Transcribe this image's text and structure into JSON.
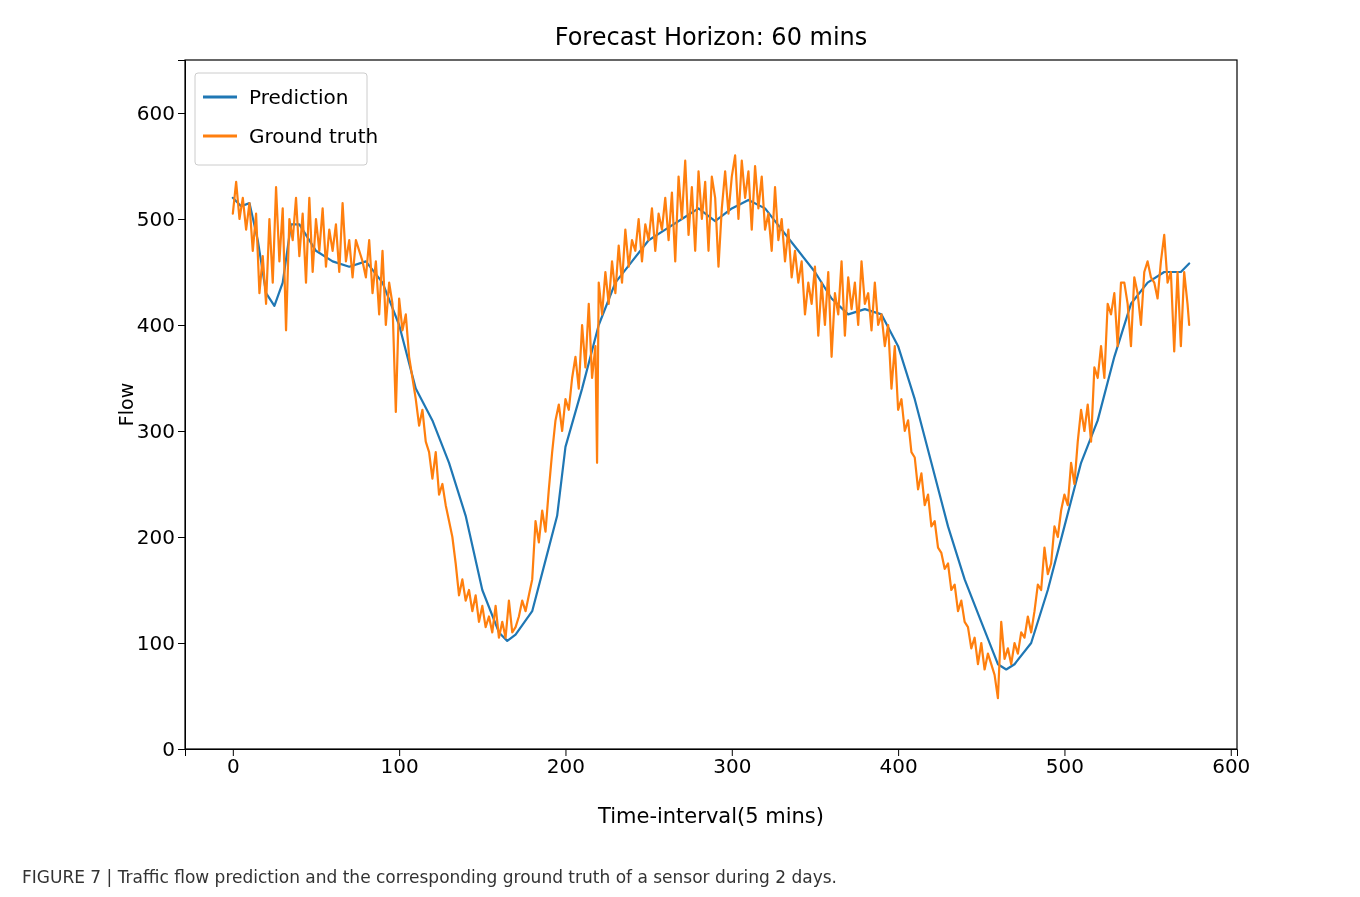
{
  "chart_data": {
    "type": "line",
    "title": "Forecast Horizon: 60 mins",
    "xlabel": "Time-interval(5 mins)",
    "ylabel": "Flow",
    "annotations": [
      "FIGURE 7 | Traffic flow prediction and the corresponding ground truth of a sensor during 2 days."
    ],
    "xlim": [
      -28.75,
      603.75
    ],
    "xticks": [
      0,
      100,
      200,
      300,
      400,
      500,
      600
    ],
    "ylim": [
      0,
      650
    ],
    "yticks": [
      0,
      100,
      200,
      300,
      400,
      500,
      600
    ],
    "legend": "top left",
    "grid": false,
    "series": [
      {
        "name": "Prediction",
        "color": "#1f77b4",
        "x": [
          0,
          5,
          10,
          15,
          20,
          25,
          30,
          35,
          40,
          50,
          60,
          70,
          80,
          90,
          100,
          110,
          120,
          130,
          140,
          150,
          160,
          165,
          170,
          180,
          190,
          195,
          200,
          210,
          220,
          230,
          240,
          250,
          260,
          270,
          280,
          290,
          300,
          310,
          320,
          330,
          340,
          350,
          360,
          370,
          380,
          390,
          400,
          410,
          420,
          430,
          440,
          450,
          460,
          465,
          470,
          480,
          490,
          500,
          510,
          520,
          530,
          540,
          550,
          560,
          570,
          575
        ],
        "values": [
          520,
          512,
          515,
          480,
          430,
          418,
          440,
          495,
          495,
          470,
          460,
          455,
          460,
          440,
          400,
          340,
          310,
          270,
          220,
          150,
          110,
          102,
          108,
          130,
          190,
          220,
          285,
          340,
          400,
          440,
          460,
          480,
          490,
          500,
          510,
          498,
          510,
          518,
          510,
          490,
          470,
          450,
          425,
          410,
          415,
          410,
          380,
          330,
          270,
          210,
          160,
          120,
          80,
          75,
          80,
          100,
          150,
          210,
          270,
          310,
          370,
          420,
          440,
          450,
          450,
          458
        ]
      },
      {
        "name": "Ground truth",
        "color": "#ff7f0e",
        "x": [
          0,
          2,
          4,
          6,
          8,
          10,
          12,
          14,
          16,
          18,
          20,
          22,
          24,
          26,
          28,
          30,
          32,
          34,
          36,
          38,
          40,
          42,
          44,
          46,
          48,
          50,
          52,
          54,
          56,
          58,
          60,
          62,
          64,
          66,
          68,
          70,
          72,
          74,
          76,
          78,
          80,
          82,
          84,
          86,
          88,
          90,
          92,
          94,
          96,
          98,
          100,
          102,
          104,
          106,
          108,
          110,
          112,
          114,
          116,
          118,
          120,
          122,
          124,
          126,
          128,
          130,
          132,
          134,
          136,
          138,
          140,
          142,
          144,
          146,
          148,
          150,
          152,
          154,
          156,
          158,
          160,
          162,
          164,
          166,
          168,
          170,
          172,
          174,
          176,
          178,
          180,
          182,
          184,
          186,
          188,
          190,
          192,
          194,
          196,
          198,
          200,
          202,
          204,
          206,
          208,
          210,
          212,
          214,
          216,
          218,
          219,
          220,
          222,
          224,
          226,
          228,
          230,
          232,
          234,
          236,
          238,
          240,
          242,
          244,
          246,
          248,
          250,
          252,
          254,
          256,
          258,
          260,
          262,
          264,
          266,
          268,
          270,
          272,
          274,
          276,
          278,
          280,
          282,
          284,
          286,
          288,
          290,
          292,
          294,
          296,
          298,
          300,
          302,
          304,
          306,
          308,
          310,
          312,
          314,
          316,
          318,
          320,
          322,
          324,
          326,
          328,
          330,
          332,
          334,
          336,
          338,
          340,
          342,
          344,
          346,
          348,
          350,
          352,
          354,
          356,
          358,
          360,
          362,
          364,
          366,
          368,
          370,
          372,
          374,
          376,
          378,
          380,
          382,
          384,
          386,
          388,
          390,
          392,
          394,
          396,
          398,
          400,
          402,
          404,
          406,
          408,
          410,
          412,
          414,
          416,
          418,
          420,
          422,
          424,
          426,
          428,
          430,
          432,
          434,
          436,
          438,
          440,
          442,
          444,
          446,
          448,
          450,
          452,
          454,
          456,
          458,
          460,
          462,
          464,
          466,
          468,
          470,
          472,
          474,
          476,
          478,
          480,
          482,
          484,
          486,
          488,
          490,
          492,
          494,
          496,
          498,
          500,
          502,
          504,
          506,
          508,
          510,
          512,
          514,
          516,
          518,
          520,
          522,
          524,
          526,
          528,
          530,
          532,
          534,
          536,
          538,
          540,
          542,
          544,
          546,
          548,
          550,
          552,
          554,
          556,
          558,
          560,
          562,
          564,
          566,
          568,
          570,
          572,
          574,
          575
        ],
        "values": [
          505,
          535,
          500,
          520,
          490,
          515,
          470,
          505,
          430,
          465,
          420,
          500,
          440,
          530,
          460,
          510,
          395,
          500,
          480,
          520,
          465,
          505,
          440,
          520,
          450,
          500,
          470,
          510,
          455,
          490,
          470,
          495,
          450,
          515,
          460,
          480,
          445,
          480,
          470,
          460,
          445,
          480,
          430,
          460,
          410,
          470,
          400,
          440,
          420,
          318,
          425,
          395,
          410,
          370,
          350,
          330,
          305,
          320,
          290,
          280,
          255,
          280,
          240,
          250,
          230,
          215,
          200,
          175,
          145,
          160,
          140,
          150,
          130,
          145,
          120,
          135,
          115,
          125,
          110,
          135,
          105,
          120,
          105,
          140,
          110,
          115,
          125,
          140,
          130,
          145,
          160,
          215,
          195,
          225,
          205,
          245,
          280,
          310,
          325,
          300,
          330,
          320,
          350,
          370,
          340,
          400,
          360,
          420,
          350,
          380,
          270,
          440,
          410,
          450,
          420,
          460,
          430,
          475,
          440,
          490,
          455,
          480,
          470,
          500,
          460,
          495,
          480,
          510,
          470,
          505,
          490,
          520,
          480,
          525,
          460,
          540,
          500,
          555,
          485,
          530,
          470,
          545,
          500,
          535,
          470,
          540,
          520,
          455,
          510,
          545,
          505,
          540,
          560,
          500,
          555,
          520,
          545,
          490,
          550,
          510,
          540,
          490,
          505,
          470,
          530,
          480,
          500,
          460,
          490,
          445,
          470,
          440,
          460,
          410,
          440,
          420,
          455,
          390,
          440,
          400,
          450,
          370,
          430,
          410,
          460,
          390,
          445,
          415,
          440,
          400,
          460,
          420,
          430,
          395,
          440,
          400,
          410,
          380,
          400,
          340,
          380,
          320,
          330,
          300,
          310,
          280,
          275,
          245,
          260,
          230,
          240,
          210,
          215,
          190,
          185,
          170,
          175,
          150,
          155,
          130,
          140,
          120,
          115,
          95,
          105,
          80,
          100,
          75,
          90,
          80,
          70,
          48,
          120,
          85,
          95,
          80,
          100,
          90,
          110,
          105,
          125,
          110,
          130,
          155,
          150,
          190,
          165,
          175,
          210,
          200,
          225,
          240,
          230,
          270,
          250,
          290,
          320,
          300,
          325,
          290,
          360,
          350,
          380,
          350,
          420,
          410,
          430,
          380,
          440,
          440,
          420,
          380,
          445,
          430,
          400,
          450,
          460,
          445,
          440,
          425,
          460,
          485,
          440,
          450,
          375,
          450,
          380,
          450,
          420,
          400
        ]
      }
    ]
  }
}
